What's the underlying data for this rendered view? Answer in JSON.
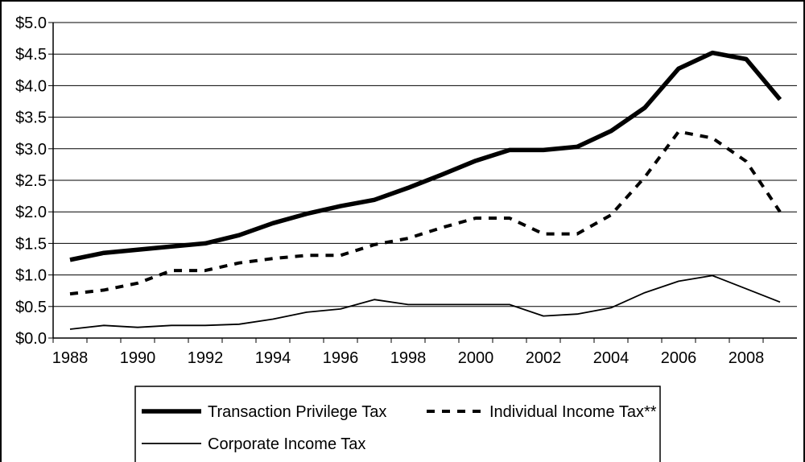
{
  "chart_data": {
    "type": "line",
    "title": "",
    "xlabel": "",
    "ylabel": "",
    "x": [
      1988,
      1989,
      1990,
      1991,
      1992,
      1993,
      1994,
      1995,
      1996,
      1997,
      1998,
      1999,
      2000,
      2001,
      2002,
      2003,
      2004,
      2005,
      2006,
      2007,
      2008,
      2009
    ],
    "xlim": [
      1987.5,
      2009.5
    ],
    "x_ticks": [
      "1988",
      "1990",
      "1992",
      "1994",
      "1996",
      "1998",
      "2000",
      "2002",
      "2004",
      "2006",
      "2008"
    ],
    "x_tick_values": [
      1988,
      1990,
      1992,
      1994,
      1996,
      1998,
      2000,
      2002,
      2004,
      2006,
      2008
    ],
    "ylim": [
      0,
      5
    ],
    "y_ticks": [
      "$0.0",
      "$0.5",
      "$1.0",
      "$1.5",
      "$2.0",
      "$2.5",
      "$3.0",
      "$3.5",
      "$4.0",
      "$4.5",
      "$5.0"
    ],
    "y_tick_values": [
      0,
      0.5,
      1,
      1.5,
      2,
      2.5,
      3,
      3.5,
      4,
      4.5,
      5
    ],
    "grid": "horizontal",
    "legend_position": "bottom",
    "series": [
      {
        "name": "Transaction Privilege Tax",
        "style": "thick-solid",
        "color": "#000000",
        "values": [
          1.24,
          1.35,
          1.4,
          1.45,
          1.5,
          1.63,
          1.82,
          1.97,
          2.09,
          2.19,
          2.38,
          2.59,
          2.81,
          2.98,
          2.98,
          3.03,
          3.28,
          3.65,
          4.27,
          4.52,
          4.42,
          3.78
        ]
      },
      {
        "name": "Individual Income Tax**",
        "style": "dashed",
        "color": "#000000",
        "values": [
          0.7,
          0.76,
          0.87,
          1.07,
          1.07,
          1.19,
          1.26,
          1.31,
          1.31,
          1.48,
          1.58,
          1.75,
          1.9,
          1.9,
          1.65,
          1.65,
          1.95,
          2.55,
          3.27,
          3.17,
          2.8,
          2.0
        ]
      },
      {
        "name": "Corporate Income Tax",
        "style": "thin-solid",
        "color": "#000000",
        "values": [
          0.14,
          0.2,
          0.17,
          0.2,
          0.2,
          0.22,
          0.3,
          0.41,
          0.46,
          0.61,
          0.53,
          0.53,
          0.53,
          0.53,
          0.35,
          0.38,
          0.48,
          0.72,
          0.9,
          0.99,
          0.78,
          0.57
        ]
      }
    ]
  }
}
